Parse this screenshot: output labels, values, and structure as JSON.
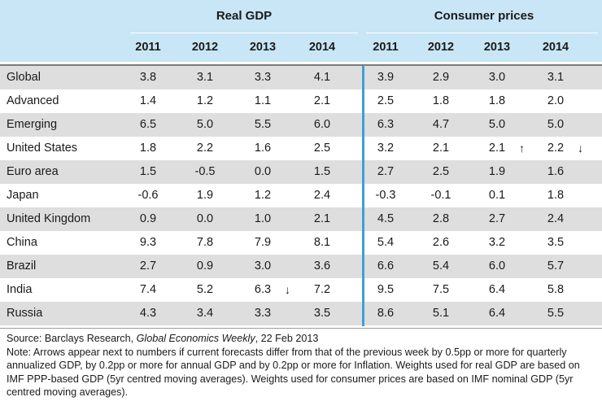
{
  "header": {
    "group1_title": "Real GDP",
    "group2_title": "Consumer prices",
    "years": [
      "2011",
      "2012",
      "2013",
      "2014",
      "2011",
      "2012",
      "2013",
      "2014"
    ]
  },
  "rows": [
    {
      "country": "Global",
      "values": [
        "3.8",
        "3.1",
        "3.3",
        "4.1",
        "3.9",
        "2.9",
        "3.0",
        "3.1"
      ],
      "shaded": true
    },
    {
      "country": "Advanced",
      "values": [
        "1.4",
        "1.2",
        "1.1",
        "2.1",
        "2.5",
        "1.8",
        "1.8",
        "2.0"
      ],
      "shaded": false
    },
    {
      "country": "Emerging",
      "values": [
        "6.5",
        "5.0",
        "5.5",
        "6.0",
        "6.3",
        "4.7",
        "5.0",
        "5.0"
      ],
      "shaded": true
    },
    {
      "country": "United States",
      "values": [
        "1.8",
        "2.2",
        "1.6",
        "2.5",
        "3.2",
        "2.1",
        "2.1",
        "2.2"
      ],
      "shaded": false,
      "arrows": {
        "6": "↑",
        "7": "↓"
      }
    },
    {
      "country": "Euro area",
      "values": [
        "1.5",
        "-0.5",
        "0.0",
        "1.5",
        "2.7",
        "2.5",
        "1.9",
        "1.6"
      ],
      "shaded": true
    },
    {
      "country": "Japan",
      "values": [
        "-0.6",
        "1.9",
        "1.2",
        "2.4",
        "-0.3",
        "-0.1",
        "0.1",
        "1.8"
      ],
      "shaded": false
    },
    {
      "country": "United Kingdom",
      "values": [
        "0.9",
        "0.0",
        "1.0",
        "2.1",
        "4.5",
        "2.8",
        "2.7",
        "2.4"
      ],
      "shaded": true
    },
    {
      "country": "China",
      "values": [
        "9.3",
        "7.8",
        "7.9",
        "8.1",
        "5.4",
        "2.6",
        "3.2",
        "3.5"
      ],
      "shaded": false
    },
    {
      "country": "Brazil",
      "values": [
        "2.7",
        "0.9",
        "3.0",
        "3.6",
        "6.6",
        "5.4",
        "6.0",
        "5.7"
      ],
      "shaded": true
    },
    {
      "country": "India",
      "values": [
        "7.4",
        "5.2",
        "6.3",
        "7.2",
        "9.5",
        "7.5",
        "6.4",
        "5.8"
      ],
      "shaded": false,
      "arrows": {
        "2": "↓"
      }
    },
    {
      "country": "Russia",
      "values": [
        "4.3",
        "3.4",
        "3.3",
        "3.5",
        "8.6",
        "5.1",
        "6.4",
        "5.5"
      ],
      "shaded": true
    }
  ],
  "footer": {
    "source_prefix": "Source: Barclays Research, ",
    "source_title": "Global Economics Weekly",
    "source_suffix": ", 22 Feb 2013",
    "note": "Note: Arrows appear next to numbers if current forecasts differ from that of the previous week by 0.5pp or more for quarterly annualized GDP, by 0.2pp or more for annual GDP and by 0.2pp or more for Inflation. Weights used for real GDP are based on IMF PPP-based GDP (5yr centred moving averages). Weights used for consumer prices are based on IMF nominal GDP (5yr centred moving averages)."
  },
  "colors": {
    "header_band": "#c8e6f6",
    "row_shade": "#dedede",
    "divider": "#3d9fd6"
  }
}
